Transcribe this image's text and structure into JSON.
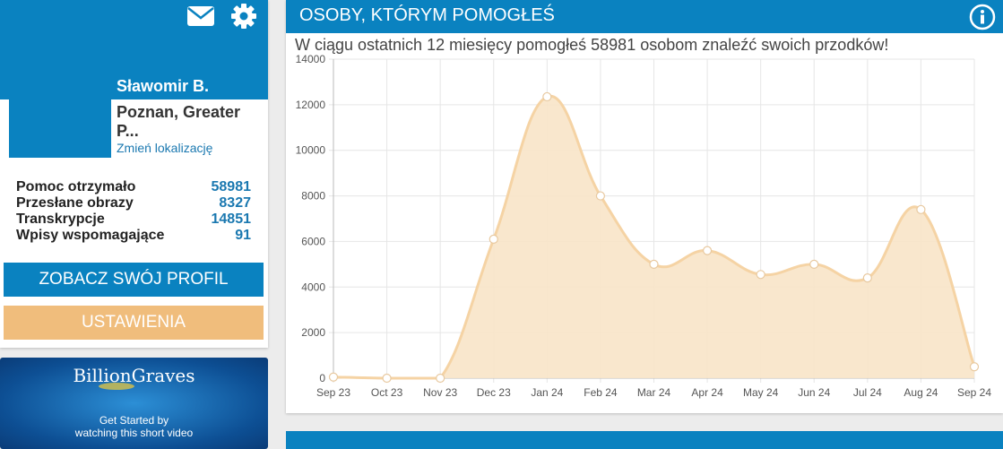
{
  "profile": {
    "name": "Sławomir B.",
    "location": "Poznan, Greater P...",
    "change_location": "Zmień lokalizację"
  },
  "stats": [
    {
      "label": "Pomoc otrzymało",
      "value": "58981"
    },
    {
      "label": "Przesłane obrazy",
      "value": "8327"
    },
    {
      "label": "Transkrypcje",
      "value": "14851"
    },
    {
      "label": "Wpisy wspomagające",
      "value": "91"
    }
  ],
  "buttons": {
    "profile": "ZOBACZ SWÓJ PROFIL",
    "settings": "USTAWIENIA"
  },
  "promo": {
    "logo_text": "BillionGraves",
    "line1": "Get Started by",
    "line2": "watching this short video"
  },
  "chart_card": {
    "title": "OSOBY, KTÓRYM POMOGŁEŚ",
    "subtitle": "W ciągu ostatnich 12 miesięcy pomogłeś 58981 osobom znaleźć swoich przodków!"
  },
  "colors": {
    "primary": "#0a82c0",
    "accent": "#f0bd7c",
    "chart_line": "#f5d3a4",
    "chart_fill": "#f8e4c8"
  },
  "chart_data": {
    "type": "area",
    "categories": [
      "Sep 23",
      "Oct 23",
      "Nov 23",
      "Dec 23",
      "Jan 24",
      "Feb 24",
      "Mar 24",
      "Apr 24",
      "May 24",
      "Jun 24",
      "Jul 24",
      "Aug 24",
      "Sep 24"
    ],
    "values": [
      50,
      0,
      0,
      6100,
      12350,
      8000,
      5000,
      5600,
      4550,
      5000,
      4400,
      7400,
      500
    ],
    "ylim": [
      0,
      14000
    ],
    "yticks": [
      0,
      2000,
      4000,
      6000,
      8000,
      10000,
      12000,
      14000
    ],
    "grid": true
  }
}
